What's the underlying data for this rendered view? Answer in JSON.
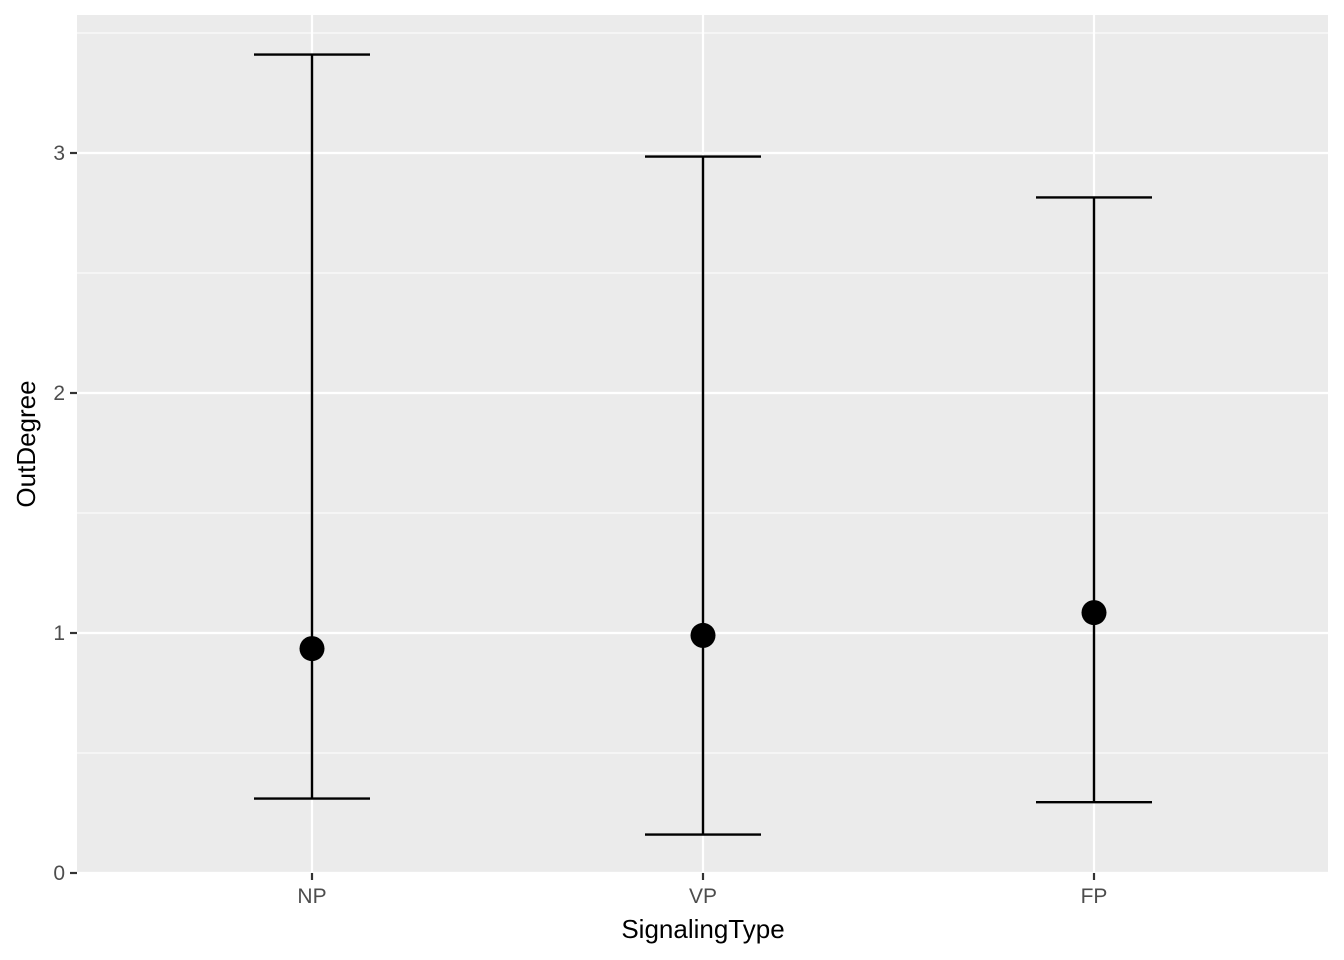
{
  "chart_data": {
    "type": "errorbar",
    "xlabel": "SignalingType",
    "ylabel": "OutDegree",
    "categories": [
      "NP",
      "VP",
      "FP"
    ],
    "values": [
      0.935,
      0.99,
      1.085
    ],
    "error_low": [
      0.31,
      0.16,
      0.295
    ],
    "error_high": [
      3.41,
      2.985,
      2.815
    ],
    "y_ticks": [
      0,
      1,
      2,
      3
    ],
    "ylim": [
      0,
      3.58
    ],
    "grid": true,
    "colors": {
      "panel_background": "#ebebeb",
      "grid_line": "#ffffff",
      "mark": "#000000",
      "tick_text": "#4d4d4d"
    }
  }
}
